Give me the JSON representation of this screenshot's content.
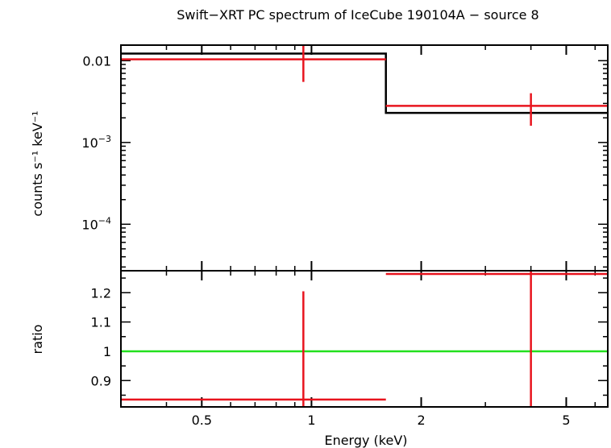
{
  "chart_data": {
    "type": "step-spectrum",
    "title": "Swift−XRT PC spectrum of IceCube 190104A − source 8",
    "xlabel": "Energy (keV)",
    "x_scale": "log",
    "xlim": [
      0.3,
      6.5
    ],
    "x_tick_labels": [
      "0.5",
      "1",
      "2",
      "5"
    ],
    "x_tick_values": [
      0.5,
      1,
      2,
      5
    ],
    "panels": [
      {
        "id": "spectrum",
        "ylabel": "counts s⁻¹ keV⁻¹",
        "y_scale": "log",
        "ylim": [
          2.7e-05,
          0.0155
        ],
        "y_tick_labels": [
          {
            "value": 0.01,
            "text": "0.01"
          },
          {
            "value": 0.001,
            "base": "10",
            "exp": "−3"
          },
          {
            "value": 0.0001,
            "base": "10",
            "exp": "−4"
          }
        ],
        "data": [
          {
            "x": 0.95,
            "xlo": 0.3,
            "xhi": 1.6,
            "y": 0.0104,
            "ylo": 0.0055,
            "yhi": 0.0155
          },
          {
            "x": 4.0,
            "xlo": 1.6,
            "xhi": 6.5,
            "y": 0.0028,
            "ylo": 0.0016,
            "yhi": 0.004
          }
        ],
        "model": [
          {
            "xlo": 0.3,
            "xhi": 1.6,
            "y": 0.0122
          },
          {
            "xlo": 1.6,
            "xhi": 6.5,
            "y": 0.0023
          }
        ]
      },
      {
        "id": "ratio",
        "ylabel": "ratio",
        "y_scale": "linear",
        "ylim": [
          0.81,
          1.275
        ],
        "y_tick_labels": [
          {
            "value": 0.9,
            "text": "0.9"
          },
          {
            "value": 1.0,
            "text": "1"
          },
          {
            "value": 1.1,
            "text": "1.1"
          },
          {
            "value": 1.2,
            "text": "1.2"
          }
        ],
        "reference_line": 1.0,
        "data": [
          {
            "x": 0.95,
            "xlo": 0.3,
            "xhi": 1.6,
            "y": 0.835,
            "ylo": 0.81,
            "yhi": 1.205
          },
          {
            "x": 4.0,
            "xlo": 1.6,
            "xhi": 6.5,
            "y": 1.265,
            "ylo": 0.81,
            "yhi": 1.275
          }
        ]
      }
    ],
    "colors": {
      "data": "#e8141e",
      "model": "#000000",
      "reference": "#22e01e",
      "axes": "#000000"
    }
  }
}
